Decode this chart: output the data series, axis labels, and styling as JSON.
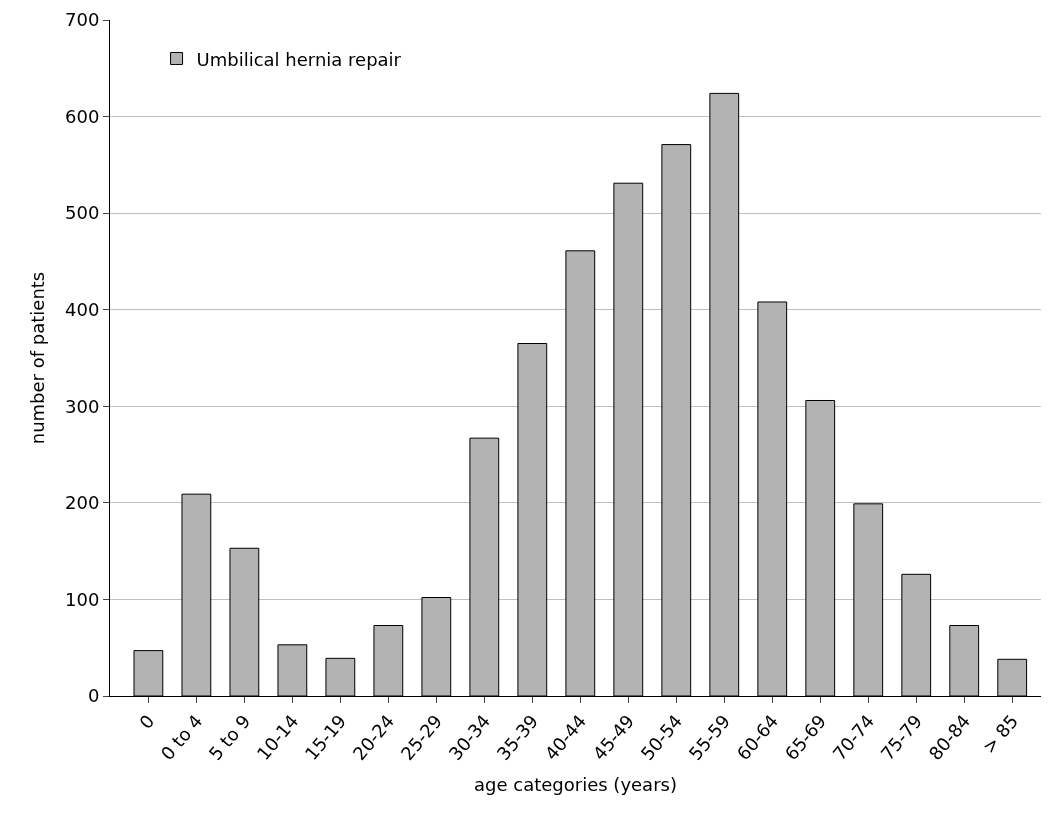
{
  "chart_data": {
    "type": "bar",
    "xlabel": "age categories (years)",
    "ylabel": "number of patients",
    "categories": [
      "0",
      "0 to 4",
      "5 to 9",
      "10-14",
      "15-19",
      "20-24",
      "25-29",
      "30-34",
      "35-39",
      "40-44",
      "45-49",
      "50-54",
      "55-59",
      "60-64",
      "65-69",
      "70-74",
      "75-79",
      "80-84",
      "> 85"
    ],
    "series": [
      {
        "name": "Umbilical hernia repair",
        "color": "#b3b3b3",
        "values": [
          47,
          209,
          153,
          53,
          39,
          73,
          102,
          267,
          365,
          461,
          531,
          571,
          624,
          408,
          306,
          199,
          126,
          73,
          38
        ]
      }
    ],
    "ylim": [
      0,
      700
    ],
    "yticks": [
      0,
      100,
      200,
      300,
      400,
      500,
      600,
      700
    ],
    "grid": "y",
    "legend": "top left"
  }
}
